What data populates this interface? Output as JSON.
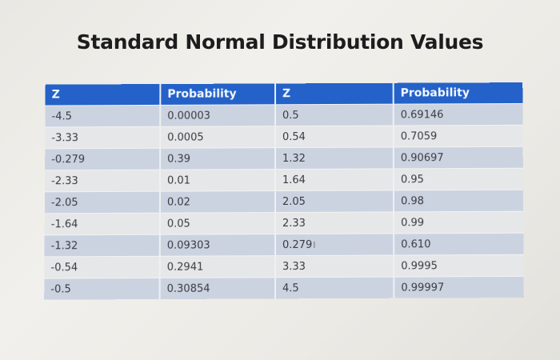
{
  "slide": {
    "title": "Standard Normal Distribution Values"
  },
  "table": {
    "headers": [
      "Z",
      "Probability",
      "Z",
      "Probability"
    ],
    "rows": [
      [
        "-4.5",
        "0.00003",
        "0.5",
        "0.69146"
      ],
      [
        "-3.33",
        "0.0005",
        "0.54",
        "0.7059"
      ],
      [
        "-0.279",
        "0.39",
        "1.32",
        "0.90697"
      ],
      [
        "-2.33",
        "0.01",
        "1.64",
        "0.95"
      ],
      [
        "-2.05",
        "0.02",
        "2.05",
        "0.98"
      ],
      [
        "-1.64",
        "0.05",
        "2.33",
        "0.99"
      ],
      [
        "-1.32",
        "0.09303",
        "0.279",
        "0.610"
      ],
      [
        "-0.54",
        "0.2941",
        "3.33",
        "0.9995"
      ],
      [
        "-0.5",
        "0.30854",
        "4.5",
        "0.99997"
      ]
    ]
  },
  "colors": {
    "header_bg": "#2462c9",
    "header_text": "#f4f7fd",
    "row_odd": "#ccd3e0",
    "row_even": "#e6e7e8"
  },
  "cursor": {
    "glyph": "I"
  }
}
